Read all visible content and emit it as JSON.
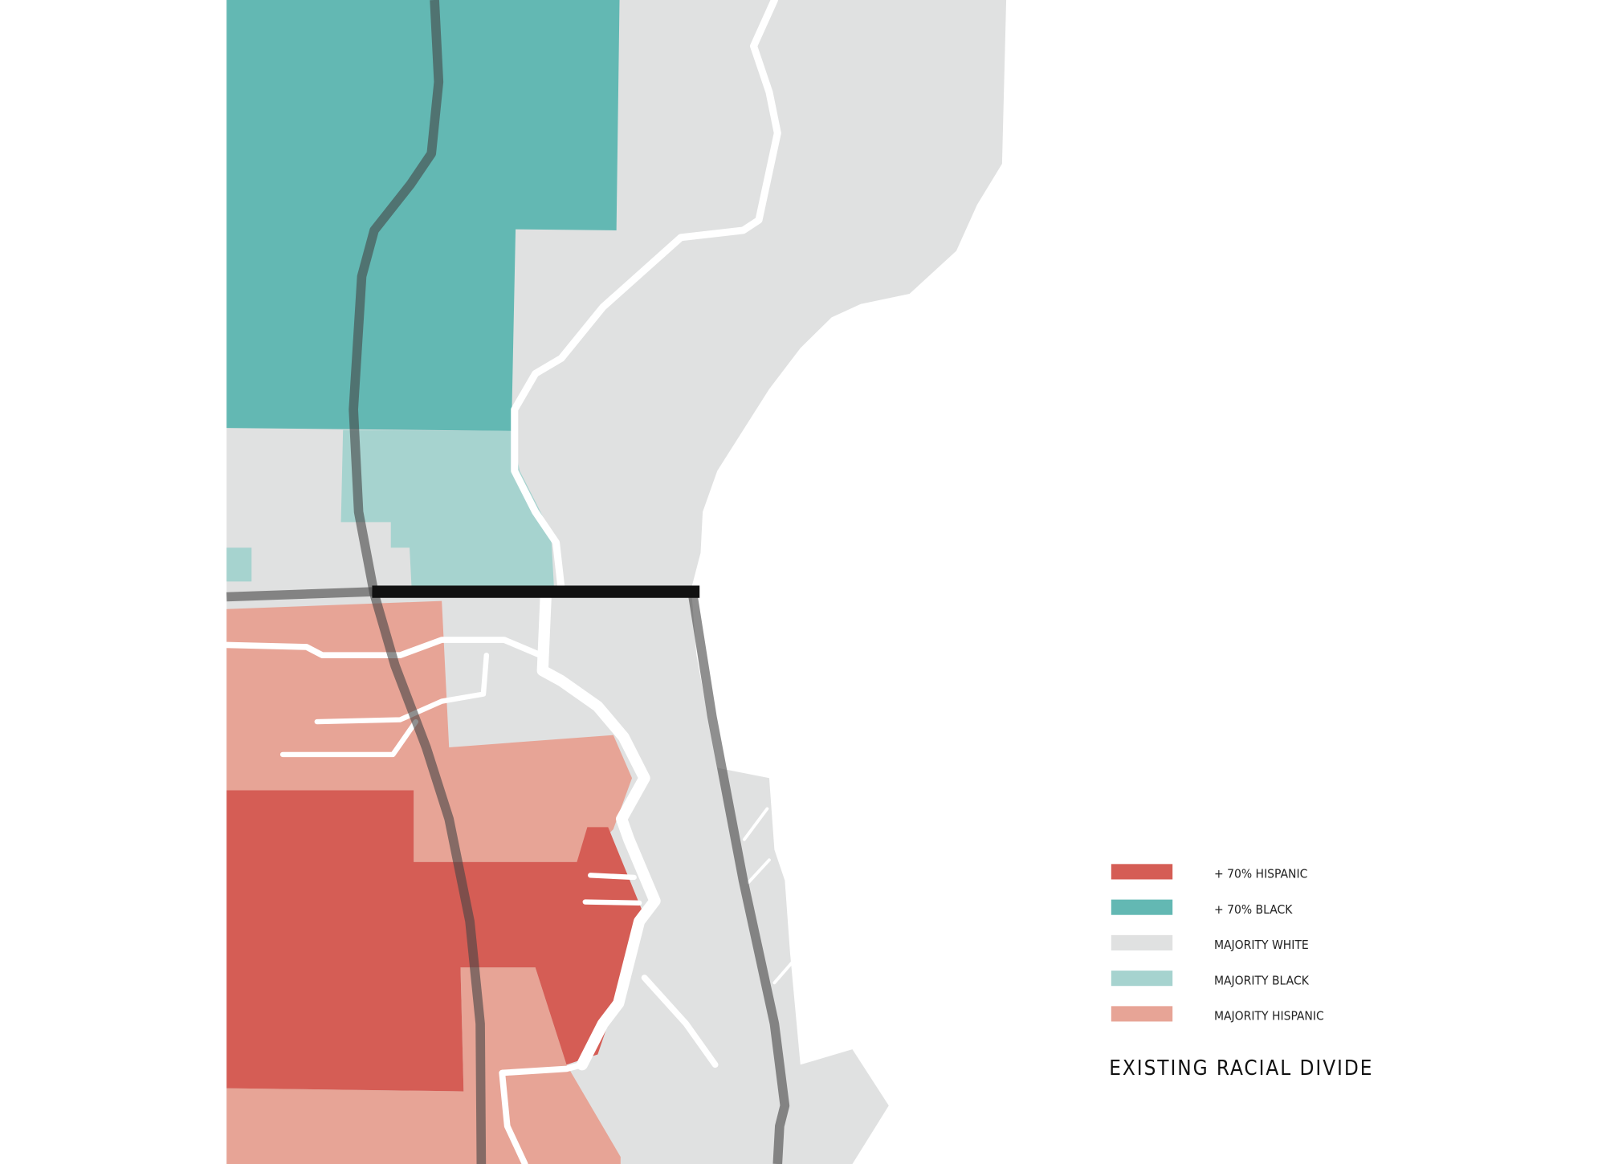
{
  "legend": [
    {
      "label": "+ 70% HISPANIC",
      "color": "#d55d55"
    },
    {
      "label": "+ 70% BLACK",
      "color": "#63b8b3"
    },
    {
      "label": "MAJORITY WHITE",
      "color": "#e0e1e1"
    },
    {
      "label": "MAJORITY BLACK",
      "color": "#a6d3cf"
    },
    {
      "label": "MAJORITY HISPANIC",
      "color": "#e7a496"
    }
  ],
  "title": "EXISTING RACIAL DIVIDE"
}
